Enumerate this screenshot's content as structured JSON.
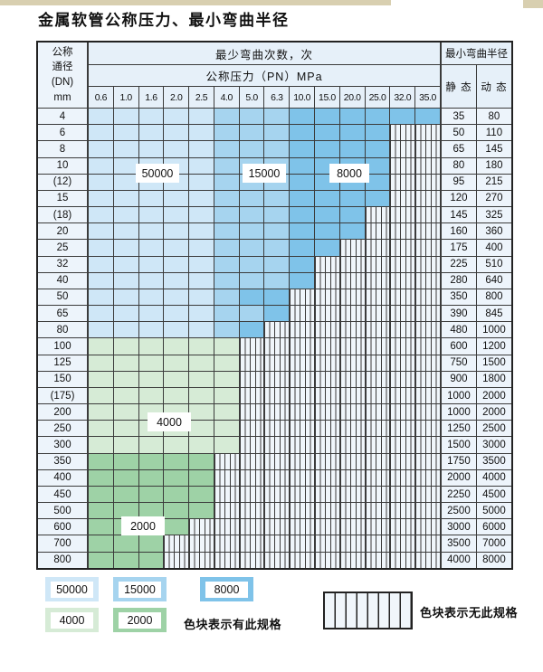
{
  "title": "金属软管公称压力、最小弯曲半径",
  "table": {
    "dn_header": [
      "公称",
      "通径",
      "(DN)",
      "mm"
    ],
    "cycles_header": "最少弯曲次数，次",
    "pressure_header": "公称压力（PN）MPa",
    "radius_header": "最小弯曲半径",
    "static_header": "静 态",
    "dynamic_header": "动 态",
    "pressure_columns": [
      "0.6",
      "1.0",
      "1.6",
      "2.0",
      "2.5",
      "4.0",
      "5.0",
      "6.3",
      "10.0",
      "15.0",
      "20.0",
      "25.0",
      "32.0",
      "35.0"
    ],
    "rows": [
      {
        "dn": "4",
        "static": "35",
        "dynamic": "80",
        "cells": [
          "50000",
          "50000",
          "50000",
          "50000",
          "50000",
          "15000",
          "15000",
          "15000",
          "8000",
          "8000",
          "8000",
          "8000",
          "8000",
          "8000"
        ]
      },
      {
        "dn": "6",
        "static": "50",
        "dynamic": "110",
        "cells": [
          "50000",
          "50000",
          "50000",
          "50000",
          "50000",
          "15000",
          "15000",
          "15000",
          "8000",
          "8000",
          "8000",
          "8000",
          "none",
          "none"
        ]
      },
      {
        "dn": "8",
        "static": "65",
        "dynamic": "145",
        "cells": [
          "50000",
          "50000",
          "50000",
          "50000",
          "50000",
          "15000",
          "15000",
          "15000",
          "8000",
          "8000",
          "8000",
          "8000",
          "none",
          "none"
        ]
      },
      {
        "dn": "10",
        "static": "80",
        "dynamic": "180",
        "cells": [
          "50000",
          "50000",
          "50000",
          "50000",
          "50000",
          "15000",
          "15000",
          "15000",
          "8000",
          "8000",
          "8000",
          "8000",
          "none",
          "none"
        ]
      },
      {
        "dn": "(12)",
        "static": "95",
        "dynamic": "215",
        "cells": [
          "50000",
          "50000",
          "50000",
          "50000",
          "50000",
          "15000",
          "15000",
          "15000",
          "8000",
          "8000",
          "8000",
          "8000",
          "none",
          "none"
        ]
      },
      {
        "dn": "15",
        "static": "120",
        "dynamic": "270",
        "cells": [
          "50000",
          "50000",
          "50000",
          "50000",
          "50000",
          "15000",
          "15000",
          "15000",
          "8000",
          "8000",
          "8000",
          "8000",
          "none",
          "none"
        ]
      },
      {
        "dn": "(18)",
        "static": "145",
        "dynamic": "325",
        "cells": [
          "50000",
          "50000",
          "50000",
          "50000",
          "50000",
          "15000",
          "15000",
          "15000",
          "8000",
          "8000",
          "8000",
          "none",
          "none",
          "none"
        ]
      },
      {
        "dn": "20",
        "static": "160",
        "dynamic": "360",
        "cells": [
          "50000",
          "50000",
          "50000",
          "50000",
          "50000",
          "15000",
          "15000",
          "15000",
          "8000",
          "8000",
          "8000",
          "none",
          "none",
          "none"
        ]
      },
      {
        "dn": "25",
        "static": "175",
        "dynamic": "400",
        "cells": [
          "50000",
          "50000",
          "50000",
          "50000",
          "50000",
          "15000",
          "15000",
          "15000",
          "8000",
          "8000",
          "none",
          "none",
          "none",
          "none"
        ]
      },
      {
        "dn": "32",
        "static": "225",
        "dynamic": "510",
        "cells": [
          "50000",
          "50000",
          "50000",
          "50000",
          "50000",
          "15000",
          "15000",
          "15000",
          "8000",
          "none",
          "none",
          "none",
          "none",
          "none"
        ]
      },
      {
        "dn": "40",
        "static": "280",
        "dynamic": "640",
        "cells": [
          "50000",
          "50000",
          "50000",
          "50000",
          "50000",
          "15000",
          "15000",
          "15000",
          "8000",
          "none",
          "none",
          "none",
          "none",
          "none"
        ]
      },
      {
        "dn": "50",
        "static": "350",
        "dynamic": "800",
        "cells": [
          "50000",
          "50000",
          "50000",
          "50000",
          "50000",
          "15000",
          "8000",
          "8000",
          "none",
          "none",
          "none",
          "none",
          "none",
          "none"
        ]
      },
      {
        "dn": "65",
        "static": "390",
        "dynamic": "845",
        "cells": [
          "50000",
          "50000",
          "50000",
          "50000",
          "50000",
          "15000",
          "15000",
          "8000",
          "none",
          "none",
          "none",
          "none",
          "none",
          "none"
        ]
      },
      {
        "dn": "80",
        "static": "480",
        "dynamic": "1000",
        "cells": [
          "50000",
          "50000",
          "50000",
          "50000",
          "50000",
          "15000",
          "8000",
          "none",
          "none",
          "none",
          "none",
          "none",
          "none",
          "none"
        ]
      },
      {
        "dn": "100",
        "static": "600",
        "dynamic": "1200",
        "cells": [
          "4000",
          "4000",
          "4000",
          "4000",
          "4000",
          "4000",
          "none",
          "none",
          "none",
          "none",
          "none",
          "none",
          "none",
          "none"
        ]
      },
      {
        "dn": "125",
        "static": "750",
        "dynamic": "1500",
        "cells": [
          "4000",
          "4000",
          "4000",
          "4000",
          "4000",
          "4000",
          "none",
          "none",
          "none",
          "none",
          "none",
          "none",
          "none",
          "none"
        ]
      },
      {
        "dn": "150",
        "static": "900",
        "dynamic": "1800",
        "cells": [
          "4000",
          "4000",
          "4000",
          "4000",
          "4000",
          "4000",
          "none",
          "none",
          "none",
          "none",
          "none",
          "none",
          "none",
          "none"
        ]
      },
      {
        "dn": "(175)",
        "static": "1000",
        "dynamic": "2000",
        "cells": [
          "4000",
          "4000",
          "4000",
          "4000",
          "4000",
          "4000",
          "none",
          "none",
          "none",
          "none",
          "none",
          "none",
          "none",
          "none"
        ]
      },
      {
        "dn": "200",
        "static": "1000",
        "dynamic": "2000",
        "cells": [
          "4000",
          "4000",
          "4000",
          "4000",
          "4000",
          "4000",
          "none",
          "none",
          "none",
          "none",
          "none",
          "none",
          "none",
          "none"
        ]
      },
      {
        "dn": "250",
        "static": "1250",
        "dynamic": "2500",
        "cells": [
          "4000",
          "4000",
          "4000",
          "4000",
          "4000",
          "4000",
          "none",
          "none",
          "none",
          "none",
          "none",
          "none",
          "none",
          "none"
        ]
      },
      {
        "dn": "300",
        "static": "1500",
        "dynamic": "3000",
        "cells": [
          "4000",
          "4000",
          "4000",
          "4000",
          "4000",
          "4000",
          "none",
          "none",
          "none",
          "none",
          "none",
          "none",
          "none",
          "none"
        ]
      },
      {
        "dn": "350",
        "static": "1750",
        "dynamic": "3500",
        "cells": [
          "2000",
          "2000",
          "2000",
          "2000",
          "2000",
          "none",
          "none",
          "none",
          "none",
          "none",
          "none",
          "none",
          "none",
          "none"
        ]
      },
      {
        "dn": "400",
        "static": "2000",
        "dynamic": "4000",
        "cells": [
          "2000",
          "2000",
          "2000",
          "2000",
          "2000",
          "none",
          "none",
          "none",
          "none",
          "none",
          "none",
          "none",
          "none",
          "none"
        ]
      },
      {
        "dn": "450",
        "static": "2250",
        "dynamic": "4500",
        "cells": [
          "2000",
          "2000",
          "2000",
          "2000",
          "2000",
          "none",
          "none",
          "none",
          "none",
          "none",
          "none",
          "none",
          "none",
          "none"
        ]
      },
      {
        "dn": "500",
        "static": "2500",
        "dynamic": "5000",
        "cells": [
          "2000",
          "2000",
          "2000",
          "2000",
          "2000",
          "none",
          "none",
          "none",
          "none",
          "none",
          "none",
          "none",
          "none",
          "none"
        ]
      },
      {
        "dn": "600",
        "static": "3000",
        "dynamic": "6000",
        "cells": [
          "2000",
          "2000",
          "2000",
          "2000",
          "none",
          "none",
          "none",
          "none",
          "none",
          "none",
          "none",
          "none",
          "none",
          "none"
        ]
      },
      {
        "dn": "700",
        "static": "3500",
        "dynamic": "7000",
        "cells": [
          "2000",
          "2000",
          "2000",
          "none",
          "none",
          "none",
          "none",
          "none",
          "none",
          "none",
          "none",
          "none",
          "none",
          "none"
        ]
      },
      {
        "dn": "800",
        "static": "4000",
        "dynamic": "8000",
        "cells": [
          "2000",
          "2000",
          "2000",
          "none",
          "none",
          "none",
          "none",
          "none",
          "none",
          "none",
          "none",
          "none",
          "none",
          "none"
        ]
      }
    ]
  },
  "overlay_labels": [
    {
      "text": "50000"
    },
    {
      "text": "15000"
    },
    {
      "text": "8000"
    },
    {
      "text": "4000"
    },
    {
      "text": "2000"
    }
  ],
  "legend": {
    "swatches": [
      {
        "label": "50000",
        "tier": "blue_light"
      },
      {
        "label": "15000",
        "tier": "blue_medium"
      },
      {
        "label": "8000",
        "tier": "blue_dark"
      },
      {
        "label": "4000",
        "tier": "green_light"
      },
      {
        "label": "2000",
        "tier": "green_medium"
      }
    ],
    "has_spec_note": "色块表示有此规格",
    "no_spec_note": "色块表示无此规格"
  },
  "colors": {
    "blue_light": "#cfe7f7",
    "blue_medium": "#a6d4ef",
    "blue_dark": "#7fc3e9",
    "green_light": "#d6ebd6",
    "green_medium": "#9ed2a6",
    "header_bg": "#e6f0f9",
    "label_bg": "#edf4fb",
    "hatch_bg": "#f0f6fb",
    "grid_line": "#3b3b3b"
  }
}
